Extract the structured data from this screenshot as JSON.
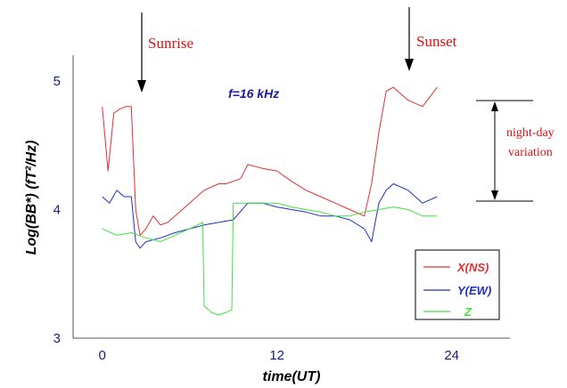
{
  "chart_data": {
    "type": "line",
    "xlabel": "time(UT)",
    "ylabel": "Log(BB*)  (fT²/Hz)",
    "xlim": [
      -2,
      28
    ],
    "ylim": [
      3,
      5.2
    ],
    "x_ticks": [
      "0",
      "12",
      "24"
    ],
    "x_tick_values": [
      0,
      12,
      24
    ],
    "y_ticks": [
      "5",
      "4",
      "3"
    ],
    "y_tick_values": [
      5,
      4,
      3
    ],
    "annotations": {
      "sunrise": "Sunrise",
      "sunset": "Sunset",
      "frequency": "f=16 kHz",
      "night_day_1": "night-day",
      "night_day_2": "variation"
    },
    "series": [
      {
        "name": "X(NS)",
        "color": "#e03030",
        "x": [
          0,
          0.4,
          0.8,
          1.2,
          1.6,
          2.0,
          2.3,
          2.6,
          3.0,
          3.5,
          4.0,
          4.5,
          5.0,
          6.0,
          7.0,
          8.0,
          8.5,
          9.0,
          9.5,
          10.0,
          11.0,
          12.0,
          13.0,
          14.0,
          15.0,
          16.0,
          17.0,
          18.0,
          18.5,
          19.0,
          19.5,
          20.0,
          21.0,
          22.0,
          23.0
        ],
        "y": [
          4.8,
          4.3,
          4.75,
          4.78,
          4.8,
          4.8,
          4.0,
          3.8,
          3.85,
          3.95,
          3.88,
          3.9,
          3.95,
          4.05,
          4.15,
          4.2,
          4.2,
          4.22,
          4.24,
          4.35,
          4.32,
          4.3,
          4.22,
          4.15,
          4.1,
          4.05,
          4.0,
          3.95,
          4.2,
          4.6,
          4.92,
          4.95,
          4.85,
          4.8,
          4.95
        ]
      },
      {
        "name": "Y(EW)",
        "color": "#2030c0",
        "x": [
          0,
          0.5,
          1.0,
          1.5,
          2.0,
          2.3,
          2.6,
          3.0,
          4.0,
          5.0,
          6.0,
          7.0,
          8.0,
          9.0,
          10.0,
          11.0,
          12.0,
          13.0,
          14.0,
          15.0,
          16.0,
          17.0,
          18.0,
          18.5,
          19.0,
          19.5,
          20.0,
          21.0,
          22.0,
          23.0
        ],
        "y": [
          4.1,
          4.05,
          4.15,
          4.1,
          4.1,
          3.75,
          3.7,
          3.75,
          3.78,
          3.82,
          3.85,
          3.88,
          3.9,
          3.92,
          4.05,
          4.05,
          4.02,
          4.0,
          3.98,
          3.95,
          3.95,
          3.92,
          3.85,
          3.75,
          4.05,
          4.15,
          4.2,
          4.15,
          4.05,
          4.1
        ]
      },
      {
        "name": "Z",
        "color": "#40e040",
        "x": [
          0,
          1.0,
          2.0,
          3.0,
          4.0,
          5.0,
          6.0,
          6.9,
          7.0,
          7.5,
          8.0,
          8.5,
          8.9,
          9.0,
          10.0,
          11.0,
          12.0,
          13.0,
          14.0,
          15.0,
          16.0,
          17.0,
          18.0,
          19.0,
          20.0,
          21.0,
          22.0,
          23.0
        ],
        "y": [
          3.85,
          3.8,
          3.82,
          3.78,
          3.75,
          3.8,
          3.85,
          3.9,
          3.25,
          3.2,
          3.18,
          3.2,
          3.22,
          4.05,
          4.05,
          4.05,
          4.05,
          4.02,
          4.0,
          3.98,
          3.95,
          3.95,
          3.98,
          4.0,
          4.02,
          4.0,
          3.95,
          3.95
        ]
      }
    ]
  }
}
